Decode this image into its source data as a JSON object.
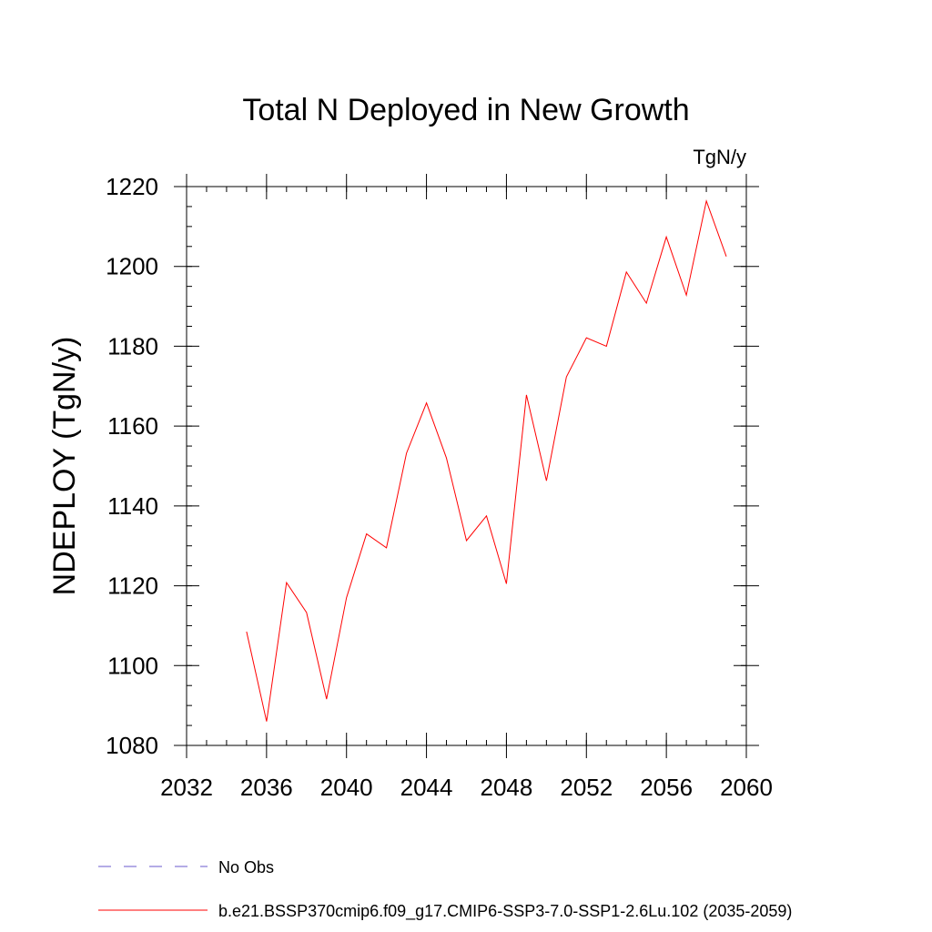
{
  "chart_data": {
    "type": "line",
    "title": "Total N Deployed in New Growth",
    "units_label": "TgN/y",
    "ylabel": "NDEPLOY  (TgN/y)",
    "xlabel": "",
    "xlim": [
      2032,
      2060
    ],
    "ylim": [
      1080,
      1220
    ],
    "x_ticks": [
      2032,
      2036,
      2040,
      2044,
      2048,
      2052,
      2056,
      2060
    ],
    "y_ticks": [
      1080,
      1100,
      1120,
      1140,
      1160,
      1180,
      1200,
      1220
    ],
    "x_minor_step": 1,
    "y_minor_step": 5,
    "grid": false,
    "legend_position": "bottom-left",
    "series": [
      {
        "name": "b.e21.BSSP370cmip6.f09_g17.CMIP6-SSP3-7.0-SSP1-2.6Lu.102 (2035-2059)",
        "color": "#ff0000",
        "x": [
          2035,
          2036,
          2037,
          2038,
          2039,
          2040,
          2041,
          2042,
          2043,
          2044,
          2045,
          2046,
          2047,
          2048,
          2049,
          2050,
          2051,
          2052,
          2053,
          2054,
          2055,
          2056,
          2057,
          2058,
          2059
        ],
        "y": [
          1108.5,
          1086.0,
          1120.8,
          1113.3,
          1091.6,
          1117.0,
          1133.0,
          1129.5,
          1153.2,
          1165.8,
          1152.0,
          1131.3,
          1137.5,
          1120.5,
          1167.8,
          1146.3,
          1172.3,
          1182.1,
          1180.0,
          1198.6,
          1190.8,
          1207.4,
          1192.8,
          1216.4,
          1202.5
        ]
      }
    ],
    "legend": [
      {
        "label": "No Obs",
        "style": "dashed",
        "color": "#6a5acd"
      },
      {
        "label": "b.e21.BSSP370cmip6.f09_g17.CMIP6-SSP3-7.0-SSP1-2.6Lu.102 (2035-2059)",
        "style": "solid",
        "color": "#ff0000"
      }
    ]
  }
}
